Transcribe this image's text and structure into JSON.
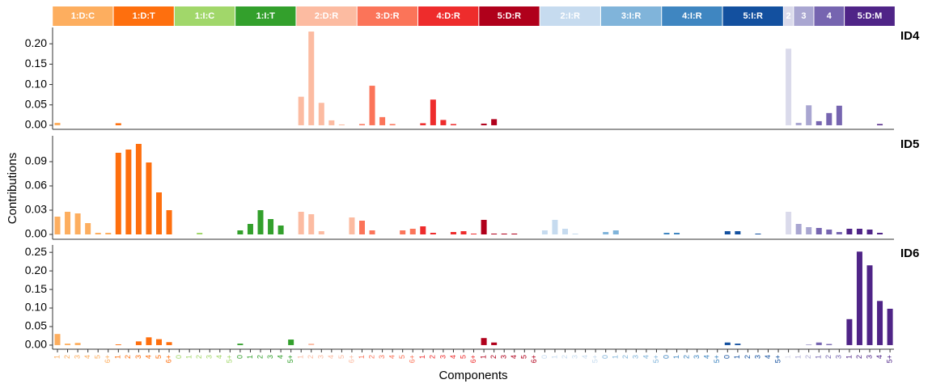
{
  "chart_data": {
    "type": "bar",
    "xlabel": "Components",
    "ylabel": "Contributions",
    "groups": [
      {
        "name": "1:D:C",
        "color": "#fdae5f",
        "categories": [
          "1",
          "2",
          "3",
          "4",
          "5",
          "6+"
        ]
      },
      {
        "name": "1:D:T",
        "color": "#fe6f0e",
        "categories": [
          "1",
          "2",
          "3",
          "4",
          "5",
          "6+"
        ]
      },
      {
        "name": "1:I:C",
        "color": "#a1d76a",
        "categories": [
          "0",
          "1",
          "2",
          "3",
          "4",
          "5+"
        ]
      },
      {
        "name": "1:I:T",
        "color": "#33a02c",
        "categories": [
          "0",
          "1",
          "2",
          "3",
          "4",
          "5+"
        ]
      },
      {
        "name": "2:D:R",
        "color": "#fcbba1",
        "categories": [
          "1",
          "2",
          "3",
          "4",
          "5",
          "6+"
        ]
      },
      {
        "name": "3:D:R",
        "color": "#fb7459",
        "categories": [
          "1",
          "2",
          "3",
          "4",
          "5",
          "6+"
        ]
      },
      {
        "name": "4:D:R",
        "color": "#ee2c2c",
        "categories": [
          "1",
          "2",
          "3",
          "4",
          "5",
          "6+"
        ]
      },
      {
        "name": "5:D:R",
        "color": "#b0001b",
        "categories": [
          "1",
          "2",
          "3",
          "4",
          "5",
          "6+"
        ]
      },
      {
        "name": "2:I:R",
        "color": "#c6dbef",
        "categories": [
          "0",
          "1",
          "2",
          "3",
          "4",
          "5+"
        ]
      },
      {
        "name": "3:I:R",
        "color": "#80b4da",
        "categories": [
          "0",
          "1",
          "2",
          "3",
          "4",
          "5+"
        ]
      },
      {
        "name": "4:I:R",
        "color": "#3f86c1",
        "categories": [
          "0",
          "1",
          "2",
          "3",
          "4",
          "5+"
        ]
      },
      {
        "name": "5:I:R",
        "color": "#13509f",
        "categories": [
          "0",
          "1",
          "2",
          "3",
          "4",
          "5+"
        ]
      },
      {
        "name": "2",
        "color": "#dadaeb",
        "categories": [
          "1"
        ]
      },
      {
        "name": "3",
        "color": "#a9a6d1",
        "categories": [
          "1",
          "2"
        ]
      },
      {
        "name": "4",
        "color": "#7665b0",
        "categories": [
          "1",
          "2",
          "3"
        ]
      },
      {
        "name": "5:D:M",
        "color": "#4f2487",
        "categories": [
          "1",
          "2",
          "3",
          "4",
          "5+"
        ]
      }
    ],
    "panels": [
      {
        "name": "ID4",
        "ylim": [
          -0.01,
          0.24
        ],
        "yticks": [
          {
            "value": 0,
            "label": "0.00"
          },
          {
            "value": 0.05,
            "label": "0.05"
          },
          {
            "value": 0.1,
            "label": "0.10"
          },
          {
            "value": 0.15,
            "label": "0.15"
          },
          {
            "value": 0.2,
            "label": "0.20"
          }
        ],
        "values": [
          0.006,
          0,
          0,
          0,
          0,
          0,
          0.005,
          0,
          0,
          0,
          0,
          0,
          0,
          0,
          0,
          0,
          0,
          0,
          0,
          0,
          0,
          0,
          0,
          0,
          0.07,
          0.23,
          0.055,
          0.012,
          0.002,
          0,
          0.003,
          0.097,
          0.02,
          0.003,
          0,
          0,
          0.005,
          0.063,
          0.013,
          0.003,
          0,
          0,
          0.004,
          0.015,
          0,
          0,
          0,
          0,
          0,
          0,
          0,
          0,
          0,
          0,
          0,
          0,
          0,
          0,
          0,
          0,
          0,
          0,
          0,
          0,
          0,
          0,
          0,
          0,
          0,
          0,
          0,
          0,
          0.188,
          0.006,
          0.049,
          0.01,
          0.03,
          0.048,
          0,
          0,
          0,
          0.003,
          0
        ]
      },
      {
        "name": "ID5",
        "ylim": [
          -0.006,
          0.122
        ],
        "yticks": [
          {
            "value": 0,
            "label": "0.00"
          },
          {
            "value": 0.03,
            "label": "0.03"
          },
          {
            "value": 0.06,
            "label": "0.06"
          },
          {
            "value": 0.09,
            "label": "0.09"
          }
        ],
        "values": [
          0.022,
          0.028,
          0.026,
          0.014,
          0.002,
          0.002,
          0.101,
          0.105,
          0.112,
          0.089,
          0.052,
          0.03,
          0,
          0,
          0.002,
          0,
          0,
          0,
          0.005,
          0.013,
          0.03,
          0.019,
          0.011,
          0,
          0.028,
          0.025,
          0.004,
          0,
          0,
          0.021,
          0.017,
          0.005,
          0,
          0,
          0.005,
          0.007,
          0.01,
          0.002,
          0,
          0.003,
          0.004,
          0.001,
          0.018,
          0.001,
          0.001,
          0.001,
          0,
          0,
          0.005,
          0.018,
          0.007,
          0.001,
          0,
          0,
          0.003,
          0.005,
          0,
          0,
          0,
          0,
          0.002,
          0.002,
          0,
          0,
          0,
          0,
          0.004,
          0.004,
          0,
          0.001,
          0,
          0,
          0.028,
          0.013,
          0.009,
          0.008,
          0.006,
          0.003,
          0.007,
          0.007,
          0.006,
          0.002,
          0
        ]
      },
      {
        "name": "ID6",
        "ylim": [
          -0.011,
          0.27
        ],
        "yticks": [
          {
            "value": 0,
            "label": "0.00"
          },
          {
            "value": 0.05,
            "label": "0.05"
          },
          {
            "value": 0.1,
            "label": "0.10"
          },
          {
            "value": 0.15,
            "label": "0.15"
          },
          {
            "value": 0.2,
            "label": "0.20"
          },
          {
            "value": 0.25,
            "label": "0.25"
          }
        ],
        "values": [
          0.03,
          0.004,
          0.006,
          0,
          0,
          0,
          0.002,
          0,
          0.01,
          0.021,
          0.016,
          0.008,
          0,
          0,
          0,
          0,
          0,
          0,
          0.004,
          0,
          0,
          0,
          0,
          0.015,
          0,
          0.004,
          0,
          0,
          0,
          0,
          0,
          0,
          0,
          0,
          0,
          0,
          0,
          0,
          0,
          0,
          0,
          0,
          0.019,
          0.007,
          0,
          0,
          0,
          0,
          0,
          0,
          0,
          0,
          0,
          0,
          0,
          0,
          0,
          0,
          0,
          0,
          0,
          0,
          0,
          0,
          0,
          0,
          0.007,
          0.004,
          0,
          0,
          0,
          0,
          0,
          0,
          0.002,
          0.007,
          0.003,
          0,
          0.07,
          0.252,
          0.215,
          0.119,
          0.098
        ]
      }
    ]
  }
}
